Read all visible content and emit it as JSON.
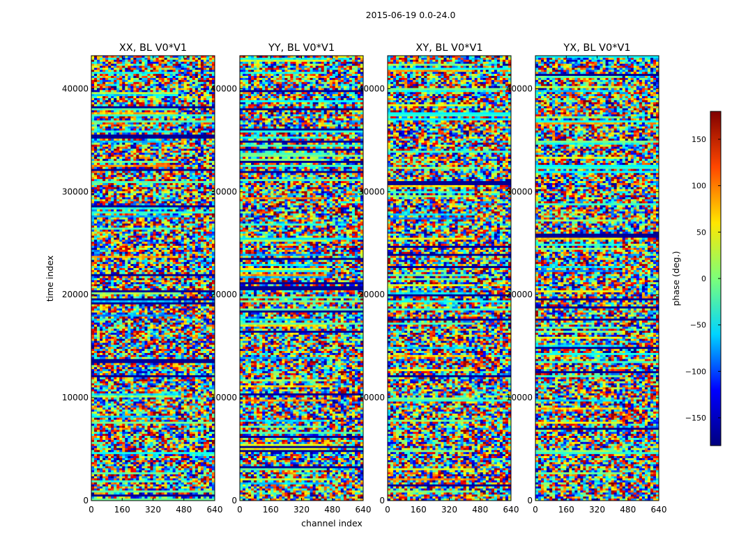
{
  "figure": {
    "suptitle": "2015-06-19 0.0-24.0",
    "xlabel": "channel index",
    "ylabel": "time index"
  },
  "chart_data": [
    {
      "type": "heatmap",
      "title": "XX, BL V0*V1",
      "xlim": [
        0,
        640
      ],
      "ylim": [
        0,
        43200
      ],
      "xticks": [
        0,
        160,
        320,
        480,
        640
      ],
      "yticks": [
        0,
        10000,
        20000,
        30000,
        40000
      ],
      "colormap": "jet",
      "zlim": [
        -180,
        180
      ]
    },
    {
      "type": "heatmap",
      "title": "YY, BL V0*V1",
      "xlim": [
        0,
        640
      ],
      "ylim": [
        0,
        43200
      ],
      "xticks": [
        0,
        160,
        320,
        480,
        640
      ],
      "yticks": [
        0,
        10000,
        20000,
        30000,
        40000
      ],
      "colormap": "jet",
      "zlim": [
        -180,
        180
      ]
    },
    {
      "type": "heatmap",
      "title": "XY, BL V0*V1",
      "xlim": [
        0,
        640
      ],
      "ylim": [
        0,
        43200
      ],
      "xticks": [
        0,
        160,
        320,
        480,
        640
      ],
      "yticks": [
        0,
        10000,
        20000,
        30000,
        40000
      ],
      "colormap": "jet",
      "zlim": [
        -180,
        180
      ]
    },
    {
      "type": "heatmap",
      "title": "YX, BL V0*V1",
      "xlim": [
        0,
        640
      ],
      "ylim": [
        0,
        43200
      ],
      "xticks": [
        0,
        160,
        320,
        480,
        640
      ],
      "yticks": [
        0,
        10000,
        20000,
        30000,
        40000
      ],
      "colormap": "jet",
      "zlim": [
        -180,
        180
      ]
    }
  ],
  "colorbar": {
    "label": "phase (deg.)",
    "ticks": [
      -150,
      -100,
      -50,
      0,
      50,
      100,
      150
    ],
    "range": [
      -180,
      180
    ],
    "colors": [
      "#00007f",
      "#0000ff",
      "#00d4ff",
      "#7cff79",
      "#ffe600",
      "#ff4700",
      "#7f0000"
    ]
  }
}
